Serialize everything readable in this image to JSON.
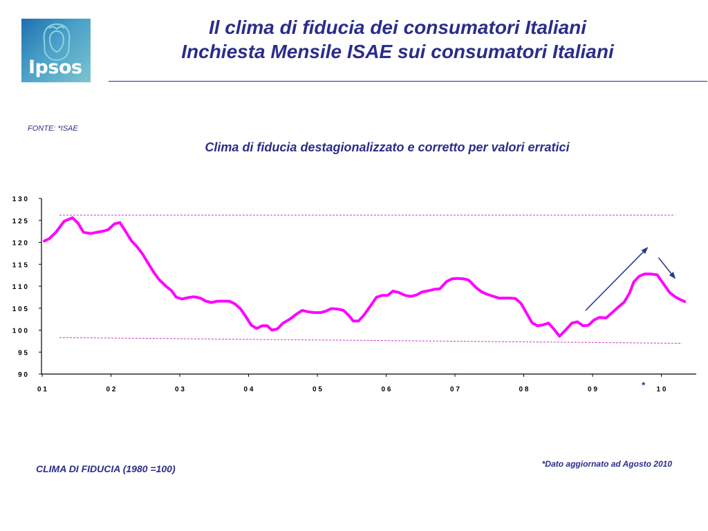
{
  "header": {
    "logo_text": "Ipsos",
    "title_line1": "Il clima di fiducia dei consumatori Italiani",
    "title_line2": "Inchiesta Mensile ISAE sui consumatori Italiani"
  },
  "source": "FONTE: *ISAE",
  "footnote": "*Dato aggiornato ad Agosto 2010",
  "index_note": "CLIMA DI FIDUCIA (1980 =100)",
  "colors": {
    "text": "#2a2d8a",
    "series": "#ff00ff",
    "reference_lines": "#cc33cc",
    "arrows": "#2a3a8a",
    "logo": "#3a8cc0"
  },
  "chart_data": {
    "type": "line",
    "title": "Clima di fiducia destagionalizzato e corretto per valori erratici",
    "xlabel": "",
    "ylabel": "",
    "ylim": [
      90,
      130
    ],
    "y_ticks": [
      90,
      95,
      100,
      105,
      110,
      115,
      120,
      125,
      130
    ],
    "y_tick_labels": [
      "9 0",
      "9 5",
      "1 0 0",
      "1 0 5",
      "1 1 0",
      "1 1 5",
      "1 2 0",
      "1 2 5",
      "1 3 0"
    ],
    "x_range": [
      2001,
      2010.5
    ],
    "x_ticks": [
      2001,
      2002,
      2003,
      2004,
      2005,
      2006,
      2007,
      2008,
      2009,
      2010
    ],
    "x_tick_labels": [
      "0 1",
      "0 2",
      "0 3",
      "0 4",
      "0 5",
      "0 6",
      "0 7",
      "0 8",
      "0 9",
      "1 0"
    ],
    "grid": false,
    "legend": "none",
    "reference_lines": [
      {
        "x0": 2001.25,
        "y0": 126.2,
        "x1": 2010.2,
        "y1": 126.2
      },
      {
        "x0": 2001.25,
        "y0": 98.3,
        "x1": 2010.3,
        "y1": 97.0
      }
    ],
    "annotations": [
      {
        "type": "arrow",
        "x0": 2008.9,
        "y0": 104.5,
        "x1": 2009.8,
        "y1": 118.8
      },
      {
        "type": "arrow",
        "x0": 2009.96,
        "y0": 116.5,
        "x1": 2010.2,
        "y1": 111.8
      },
      {
        "type": "text",
        "text": "*",
        "x": 2009.74,
        "y": 88.0
      }
    ],
    "series": [
      {
        "values": [
          [
            2001.03,
            120.3
          ],
          [
            2001.1,
            120.8
          ],
          [
            2001.2,
            122.3
          ],
          [
            2001.32,
            124.8
          ],
          [
            2001.44,
            125.6
          ],
          [
            2001.52,
            124.4
          ],
          [
            2001.6,
            122.3
          ],
          [
            2001.7,
            122.0
          ],
          [
            2001.8,
            122.3
          ],
          [
            2001.9,
            122.6
          ],
          [
            2001.96,
            122.9
          ],
          [
            2002.05,
            124.2
          ],
          [
            2002.13,
            124.5
          ],
          [
            2002.2,
            122.8
          ],
          [
            2002.3,
            120.3
          ],
          [
            2002.38,
            119.0
          ],
          [
            2002.46,
            117.3
          ],
          [
            2002.55,
            115.0
          ],
          [
            2002.63,
            113.0
          ],
          [
            2002.7,
            111.5
          ],
          [
            2002.8,
            110.0
          ],
          [
            2002.88,
            109.0
          ],
          [
            2002.95,
            107.5
          ],
          [
            2003.03,
            107.1
          ],
          [
            2003.12,
            107.4
          ],
          [
            2003.2,
            107.6
          ],
          [
            2003.3,
            107.3
          ],
          [
            2003.38,
            106.6
          ],
          [
            2003.46,
            106.3
          ],
          [
            2003.55,
            106.6
          ],
          [
            2003.64,
            106.6
          ],
          [
            2003.72,
            106.6
          ],
          [
            2003.8,
            106.0
          ],
          [
            2003.88,
            104.9
          ],
          [
            2003.96,
            103.1
          ],
          [
            2004.04,
            101.1
          ],
          [
            2004.12,
            100.4
          ],
          [
            2004.2,
            101.0
          ],
          [
            2004.27,
            101.0
          ],
          [
            2004.34,
            100.0
          ],
          [
            2004.42,
            100.3
          ],
          [
            2004.5,
            101.6
          ],
          [
            2004.6,
            102.5
          ],
          [
            2004.7,
            103.7
          ],
          [
            2004.78,
            104.5
          ],
          [
            2004.86,
            104.2
          ],
          [
            2004.95,
            104.0
          ],
          [
            2005.05,
            104.0
          ],
          [
            2005.12,
            104.3
          ],
          [
            2005.2,
            104.9
          ],
          [
            2005.3,
            104.8
          ],
          [
            2005.38,
            104.5
          ],
          [
            2005.46,
            103.3
          ],
          [
            2005.52,
            102.1
          ],
          [
            2005.6,
            102.1
          ],
          [
            2005.68,
            103.5
          ],
          [
            2005.78,
            105.7
          ],
          [
            2005.86,
            107.5
          ],
          [
            2005.94,
            107.9
          ],
          [
            2006.02,
            107.9
          ],
          [
            2006.1,
            108.9
          ],
          [
            2006.18,
            108.6
          ],
          [
            2006.28,
            107.9
          ],
          [
            2006.36,
            107.7
          ],
          [
            2006.44,
            108.0
          ],
          [
            2006.52,
            108.7
          ],
          [
            2006.62,
            109.0
          ],
          [
            2006.7,
            109.3
          ],
          [
            2006.78,
            109.4
          ],
          [
            2006.88,
            111.1
          ],
          [
            2006.96,
            111.7
          ],
          [
            2007.04,
            111.8
          ],
          [
            2007.12,
            111.7
          ],
          [
            2007.2,
            111.4
          ],
          [
            2007.3,
            109.8
          ],
          [
            2007.38,
            108.8
          ],
          [
            2007.46,
            108.2
          ],
          [
            2007.56,
            107.7
          ],
          [
            2007.64,
            107.3
          ],
          [
            2007.72,
            107.3
          ],
          [
            2007.8,
            107.3
          ],
          [
            2007.88,
            107.2
          ],
          [
            2007.96,
            106.1
          ],
          [
            2008.04,
            103.9
          ],
          [
            2008.12,
            101.7
          ],
          [
            2008.2,
            101.0
          ],
          [
            2008.28,
            101.2
          ],
          [
            2008.36,
            101.6
          ],
          [
            2008.44,
            100.2
          ],
          [
            2008.52,
            98.6
          ],
          [
            2008.6,
            99.9
          ],
          [
            2008.7,
            101.6
          ],
          [
            2008.78,
            101.9
          ],
          [
            2008.86,
            101.0
          ],
          [
            2008.94,
            101.1
          ],
          [
            2009.02,
            102.3
          ],
          [
            2009.1,
            102.9
          ],
          [
            2009.2,
            102.8
          ],
          [
            2009.3,
            104.2
          ],
          [
            2009.38,
            105.3
          ],
          [
            2009.46,
            106.4
          ],
          [
            2009.54,
            108.5
          ],
          [
            2009.6,
            111.0
          ],
          [
            2009.68,
            112.3
          ],
          [
            2009.76,
            112.8
          ],
          [
            2009.84,
            112.8
          ],
          [
            2009.94,
            112.6
          ],
          [
            2010.02,
            110.8
          ],
          [
            2010.12,
            108.6
          ],
          [
            2010.2,
            107.6
          ],
          [
            2010.27,
            107.0
          ],
          [
            2010.34,
            106.5
          ]
        ]
      }
    ]
  }
}
